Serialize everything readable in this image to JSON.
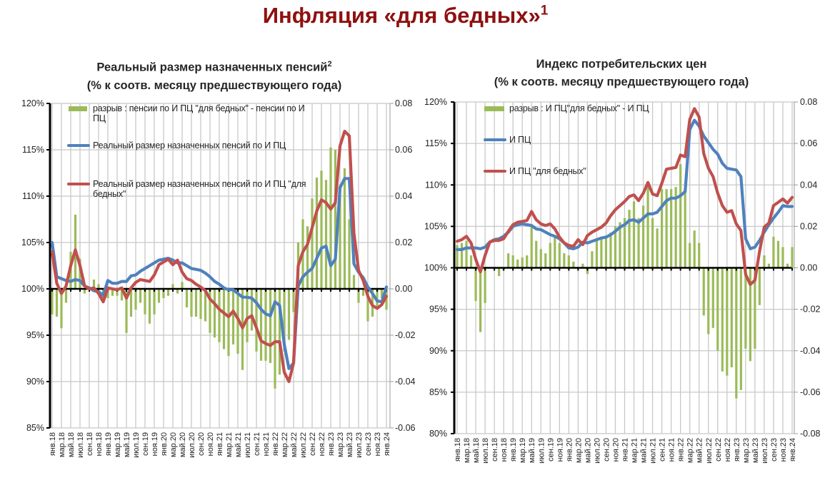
{
  "title": "Инфляция «для бедных»",
  "title_note": "1",
  "colors": {
    "gap": "#9bbb59",
    "cpi": "#4f81bd",
    "poor": "#c0504d"
  },
  "charts": [
    {
      "title_line1": "Реальный размер назначенных пенсий",
      "title_note": "2",
      "title_line2": "(% к соотв. месяцу предшествующего года)",
      "legend": {
        "gap": "разрыв : пенсии по И ПЦ \"для бедных\" - пенсии по И ПЦ",
        "cpi": "Реальный размер назначенных пенсий по И ПЦ",
        "poor": "Реальный размер назначенных пенсий по И ПЦ \"для бедных\""
      },
      "y_ticks": [
        "120%",
        "115%",
        "110%",
        "105%",
        "100%",
        "95%",
        "90%",
        "85%"
      ],
      "y2_ticks": [
        "0.08",
        "0.06",
        "0.04",
        "0.02",
        "0.00",
        "-0.02",
        "-0.04",
        "-0.06"
      ]
    },
    {
      "title_line1": "Индекс потребительских цен",
      "title_line2": "(% к соотв. месяцу предшествующего года)",
      "legend": {
        "gap": "разрыв : И ПЦ\"для бедных\" - И ПЦ",
        "cpi": "И ПЦ",
        "poor": "И ПЦ \"для бедных\""
      },
      "y_ticks": [
        "120%",
        "115%",
        "110%",
        "105%",
        "100%",
        "95%",
        "90%",
        "85%",
        "80%"
      ],
      "y2_ticks": [
        "0.08",
        "0.06",
        "0.04",
        "0.02",
        "0.00",
        "-0.02",
        "-0.04",
        "-0.06",
        "-0.08"
      ]
    }
  ],
  "chart_data": [
    {
      "type": "line",
      "x_range": [
        "янв.18",
        "янв.24"
      ],
      "x_frequency": "monthly",
      "x_tick_labels": [
        "янв.18",
        "мар.18",
        "май.18",
        "июл.18",
        "сен.18",
        "ноя.18",
        "янв.19",
        "мар.19",
        "май.19",
        "июл.19",
        "сен.19",
        "ноя.19",
        "янв.20",
        "мар.20",
        "май.20",
        "июл.20",
        "сен.20",
        "ноя.20",
        "янв.21",
        "мар.21",
        "май.21",
        "июл.21",
        "сен.21",
        "ноя.21",
        "янв.22",
        "мар.22",
        "май.22",
        "июл.22",
        "сен.22",
        "ноя.22",
        "янв.23",
        "мар.23",
        "май.23",
        "июл.23",
        "сен.23",
        "ноя.23",
        "янв.24"
      ],
      "ylim": [
        85,
        120
      ],
      "y2lim": [
        -0.06,
        0.08
      ],
      "grid": true,
      "legend_position": "top-left",
      "series": [
        {
          "name": "разрыв : пенсии по И ПЦ \"для бедных\" - пенсии по И ПЦ",
          "kind": "bar",
          "axis": "right",
          "values": [
            -0.011,
            -0.012,
            -0.017,
            -0.006,
            0.016,
            0.032,
            0.013,
            -0.002,
            0.0,
            0.004,
            0.002,
            -0.005,
            -0.004,
            -0.003,
            -0.003,
            -0.005,
            -0.019,
            -0.012,
            -0.009,
            -0.006,
            -0.011,
            -0.015,
            -0.011,
            -0.006,
            -0.004,
            -0.003,
            0.002,
            -0.002,
            0.003,
            -0.008,
            -0.012,
            -0.012,
            -0.013,
            -0.014,
            -0.019,
            -0.021,
            -0.023,
            -0.026,
            -0.029,
            -0.024,
            -0.028,
            -0.035,
            -0.023,
            -0.018,
            -0.027,
            -0.031,
            -0.031,
            -0.032,
            -0.043,
            -0.037,
            -0.027,
            -0.022,
            -0.01,
            0.02,
            0.03,
            0.027,
            0.039,
            0.048,
            0.051,
            0.047,
            0.061,
            0.06,
            0.045,
            0.052,
            0.03,
            0.006,
            -0.006,
            -0.003,
            -0.014,
            -0.012,
            -0.008,
            -0.004,
            -0.009
          ]
        },
        {
          "name": "Реальный размер назначенных пенсий по И ПЦ",
          "kind": "line",
          "axis": "left",
          "values": [
            105.0,
            101.3,
            101.1,
            100.9,
            100.8,
            101.0,
            100.9,
            100.3,
            100.1,
            99.8,
            99.7,
            99.3,
            100.9,
            100.6,
            100.6,
            100.8,
            100.8,
            101.4,
            101.5,
            101.9,
            102.2,
            102.5,
            102.8,
            103.1,
            103.2,
            103.3,
            103.1,
            102.8,
            102.8,
            102.5,
            102.2,
            102.1,
            102.0,
            101.7,
            101.3,
            100.8,
            100.5,
            100.1,
            99.9,
            99.9,
            99.5,
            99.1,
            99.1,
            99.0,
            98.5,
            97.8,
            97.3,
            97.1,
            98.6,
            98.2,
            94.0,
            91.4,
            92.0,
            100.3,
            101.3,
            101.8,
            102.2,
            103.3,
            104.4,
            104.6,
            102.5,
            103.2,
            110.9,
            111.9,
            111.9,
            102.7,
            101.8,
            101.2,
            100.2,
            99.5,
            98.7,
            98.6,
            100.2
          ]
        },
        {
          "name": "Реальный размер назначенных пенсий по И ПЦ \"для бедных\"",
          "kind": "line",
          "axis": "left",
          "values": [
            104.0,
            100.6,
            99.5,
            100.3,
            102.5,
            104.2,
            102.5,
            100.3,
            100.0,
            100.1,
            99.5,
            98.6,
            100.1,
            100.0,
            99.9,
            100.1,
            99.0,
            100.1,
            100.7,
            101.0,
            100.9,
            100.8,
            101.5,
            102.6,
            102.9,
            103.2,
            102.6,
            103.1,
            101.8,
            101.1,
            100.9,
            100.5,
            100.2,
            99.8,
            98.9,
            98.4,
            97.8,
            97.4,
            97.0,
            97.6,
            96.8,
            95.8,
            96.8,
            97.1,
            95.8,
            94.4,
            94.1,
            93.9,
            94.3,
            94.3,
            91.0,
            90.0,
            92.0,
            102.5,
            104.0,
            104.8,
            106.6,
            108.4,
            109.6,
            109.3,
            108.6,
            109.3,
            115.4,
            117.0,
            116.5,
            106.0,
            102.0,
            100.9,
            99.2,
            98.2,
            97.9,
            98.3,
            99.2
          ]
        }
      ]
    },
    {
      "type": "line",
      "x_range": [
        "янв.18",
        "янв.24"
      ],
      "x_frequency": "monthly",
      "x_tick_labels": [
        "янв.18",
        "мар.18",
        "май.18",
        "июл.18",
        "сен.18",
        "ноя.18",
        "янв.19",
        "мар.19",
        "май.19",
        "июл.19",
        "сен.19",
        "ноя.19",
        "янв.20",
        "мар.20",
        "май.20",
        "июл.20",
        "сен.20",
        "ноя.20",
        "янв.21",
        "мар.21",
        "май.21",
        "июл.21",
        "сен.21",
        "ноя.21",
        "янв.22",
        "мар.22",
        "май.22",
        "июл.22",
        "сен.22",
        "ноя.22",
        "янв.23",
        "мар.23",
        "май.23",
        "июл.23",
        "сен.23",
        "ноя.23",
        "янв.24"
      ],
      "ylim": [
        80,
        120
      ],
      "y2lim": [
        -0.08,
        0.08
      ],
      "grid": true,
      "legend_position": "top-left",
      "series": [
        {
          "name": "разрыв : И ПЦ\"для бедных\" - И ПЦ",
          "kind": "bar",
          "axis": "right",
          "values": [
            0.011,
            0.012,
            0.013,
            0.006,
            -0.016,
            -0.031,
            -0.017,
            0.0,
            0.0,
            -0.004,
            -0.001,
            0.007,
            0.006,
            0.004,
            0.005,
            0.006,
            0.02,
            0.013,
            0.009,
            0.007,
            0.012,
            0.015,
            0.012,
            0.007,
            0.006,
            0.003,
            0.0,
            0.002,
            -0.003,
            0.008,
            0.013,
            0.014,
            0.015,
            0.017,
            0.02,
            0.022,
            0.024,
            0.028,
            0.032,
            0.024,
            0.03,
            0.04,
            0.024,
            0.019,
            0.038,
            0.038,
            0.038,
            0.039,
            0.05,
            0.037,
            0.012,
            0.018,
            0.012,
            -0.023,
            -0.032,
            -0.029,
            -0.04,
            -0.05,
            -0.052,
            -0.048,
            -0.063,
            -0.059,
            -0.039,
            -0.045,
            -0.039,
            -0.018,
            0.006,
            0.002,
            0.015,
            0.013,
            0.01,
            0.002,
            0.01
          ]
        },
        {
          "name": "И ПЦ",
          "kind": "line",
          "axis": "left",
          "values": [
            102.2,
            102.2,
            102.4,
            102.4,
            102.4,
            102.3,
            102.5,
            103.1,
            103.4,
            103.5,
            103.8,
            104.3,
            105.0,
            105.2,
            105.3,
            105.2,
            105.1,
            104.7,
            104.6,
            104.3,
            104.0,
            103.8,
            103.5,
            103.0,
            102.4,
            102.3,
            102.5,
            103.1,
            103.0,
            103.2,
            103.4,
            103.6,
            103.7,
            104.0,
            104.4,
            104.9,
            105.2,
            105.7,
            105.8,
            105.5,
            106.0,
            106.5,
            106.5,
            106.7,
            107.4,
            108.1,
            108.4,
            108.4,
            108.7,
            109.2,
            116.7,
            117.8,
            117.1,
            115.9,
            115.1,
            114.3,
            113.7,
            112.6,
            112.0,
            111.9,
            111.8,
            111.0,
            103.5,
            102.3,
            102.5,
            103.3,
            104.3,
            105.2,
            106.0,
            106.7,
            107.5,
            107.4,
            107.4
          ]
        },
        {
          "name": "И ПЦ \"для бедных\"",
          "kind": "line",
          "axis": "left",
          "values": [
            103.2,
            103.4,
            103.8,
            103.0,
            101.0,
            99.5,
            101.5,
            103.1,
            103.3,
            103.3,
            103.5,
            104.4,
            105.2,
            105.5,
            105.6,
            105.7,
            106.8,
            105.8,
            105.3,
            105.1,
            105.3,
            104.7,
            103.7,
            103.0,
            102.7,
            102.6,
            103.4,
            102.8,
            103.9,
            104.3,
            104.6,
            104.9,
            105.4,
            106.3,
            107.0,
            107.5,
            108.0,
            108.6,
            108.8,
            108.1,
            109.0,
            110.3,
            108.9,
            108.7,
            110.2,
            111.9,
            112.0,
            112.1,
            113.6,
            113.4,
            117.9,
            119.2,
            118.2,
            113.8,
            112.0,
            111.0,
            109.0,
            107.5,
            106.7,
            106.9,
            105.3,
            104.5,
            99.2,
            98.0,
            98.5,
            102.0,
            104.9,
            105.4,
            107.5,
            107.9,
            108.3,
            107.8,
            108.5
          ]
        }
      ]
    }
  ]
}
